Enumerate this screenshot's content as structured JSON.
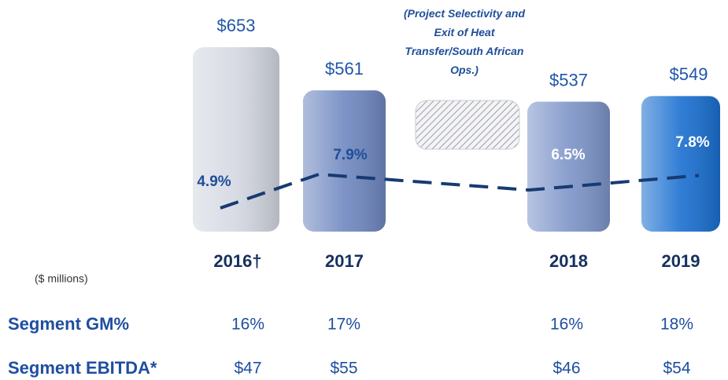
{
  "chart_data": {
    "type": "bar",
    "categories": [
      "2016†",
      "2017",
      "2018",
      "2019"
    ],
    "values": [
      653,
      561,
      537,
      549
    ],
    "value_labels": [
      "$653",
      "$561",
      "$537",
      "$549"
    ],
    "colors": [
      "#d3d7e1",
      "#6f88c0",
      "#7d94c8",
      "#1a6fd0"
    ],
    "ylim": [
      260,
      660
    ],
    "line": {
      "values": [
        4.9,
        7.9,
        6.5,
        7.8
      ],
      "value_labels": [
        "4.9%",
        "7.9%",
        "6.5%",
        "7.8%"
      ],
      "color": "#183a72",
      "axis": "y2"
    },
    "y2lim": [
      0,
      10
    ],
    "annotation": "(Project Selectivity and Exit of Heat Transfer/South African Ops.)",
    "unit_note": "($ millions)"
  },
  "table": {
    "rows": [
      {
        "label": "Segment GM%",
        "values": [
          "16%",
          "17%",
          "16%",
          "18%"
        ]
      },
      {
        "label": "Segment EBITDA*",
        "values": [
          "$47",
          "$55",
          "$46",
          "$54"
        ]
      }
    ]
  }
}
